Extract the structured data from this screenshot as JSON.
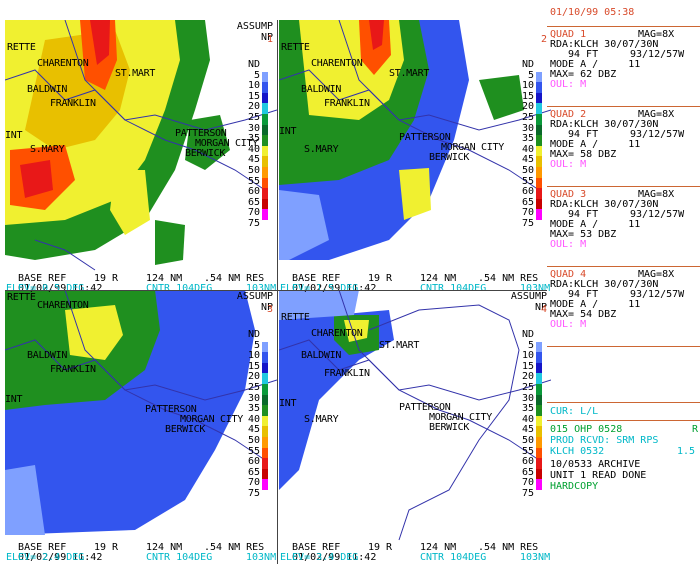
{
  "header": {
    "datetime": "01/10/99 05:38"
  },
  "towns": [
    "RETTE",
    "CHARENTON",
    "ST.MART",
    "BALDWIN",
    "FRANKLIN",
    "PATTERSON",
    "MORGAN CITY",
    "BERWICK",
    "S.MARY",
    "INT"
  ],
  "assump": [
    "ASSUMP",
    "NP"
  ],
  "legend": {
    "labels": [
      "ND",
      "5",
      "10",
      "15",
      "20",
      "25",
      "30",
      "35",
      "40",
      "45",
      "50",
      "55",
      "60",
      "65",
      "70",
      "75"
    ],
    "colors": [
      "#ffffff",
      "#7fa0ff",
      "#3355ee",
      "#1515c8",
      "#22c8e0",
      "#0a9a3a",
      "#0a6a2a",
      "#1f8f1f",
      "#f0f030",
      "#e8c000",
      "#ff9a00",
      "#ff5000",
      "#e81818",
      "#c80000",
      "#ff00ff",
      "#ffffff"
    ]
  },
  "quads": [
    {
      "num": "1",
      "footer": {
        "product": "BASE REF",
        "range": "19 R",
        "nm": "124 NM",
        "res": ".54 NM RES",
        "date": "01/02/99 11:42",
        "cntr": "CNTR 104DEG",
        "cntr_nm": "103NM",
        "elev": "ELEV= 0.5 DEG"
      }
    },
    {
      "num": "2",
      "footer": {
        "product": "BASE REF",
        "range": "19 R",
        "nm": "124 NM",
        "res": ".54 NM RES",
        "date": "01/02/99 11:42",
        "cntr": "CNTR 104DEG",
        "cntr_nm": "103NM",
        "elev": "ELEV= 1.5 DEG"
      }
    },
    {
      "num": "3",
      "footer": {
        "product": "BASE REF",
        "range": "19 R",
        "nm": "124 NM",
        "res": ".54 NM RES",
        "date": "01/02/99 11:42",
        "cntr": "CNTR 104DEG",
        "cntr_nm": "103NM",
        "elev": "ELEV= 2.4 DEG"
      }
    },
    {
      "num": "4",
      "footer": {
        "product": "BASE REF",
        "range": "19 R",
        "nm": "124 NM",
        "res": ".54 NM RES",
        "date": "01/02/99 11:42",
        "cntr": "CNTR 104DEG",
        "cntr_nm": "103NM",
        "elev": "ELEV= 3.4 DEG"
      }
    }
  ],
  "quad_info": [
    {
      "title": "QUAD 1",
      "mag": "MAG=8X",
      "rda": "RDA:KLCH 30/07/30N",
      "ft": "94 FT",
      "lon": "93/12/57W",
      "mode": "MODE A /     11",
      "max": "MAX= 62 DBZ",
      "oul": "OUL: M"
    },
    {
      "title": "QUAD 2",
      "mag": "MAG=8X",
      "rda": "RDA:KLCH 30/07/30N",
      "ft": "94 FT",
      "lon": "93/12/57W",
      "mode": "MODE A /     11",
      "max": "MAX= 58 DBZ",
      "oul": "OUL: M"
    },
    {
      "title": "QUAD 3",
      "mag": "MAG=8X",
      "rda": "RDA:KLCH 30/07/30N",
      "ft": "94 FT",
      "lon": "93/12/57W",
      "mode": "MODE A /     11",
      "max": "MAX= 53 DBZ",
      "oul": "OUL: M"
    },
    {
      "title": "QUAD 4",
      "mag": "MAG=8X",
      "rda": "RDA:KLCH 30/07/30N",
      "ft": "94 FT",
      "lon": "93/12/57W",
      "mode": "MODE A /     11",
      "max": "MAX= 54 DBZ",
      "oul": "OUL: M"
    }
  ],
  "status": {
    "cursor": "CUR: L/L",
    "ohp": "015 OHP 0528",
    "r": "R",
    "prod": "PROD RCVD: SRM RPS",
    "klch": "KLCH 0532",
    "klch_val": "1.5",
    "archive": "10/0533 ARCHIVE",
    "unit": "UNIT 1 READ DONE",
    "hardcopy": "HARDCOPY"
  }
}
